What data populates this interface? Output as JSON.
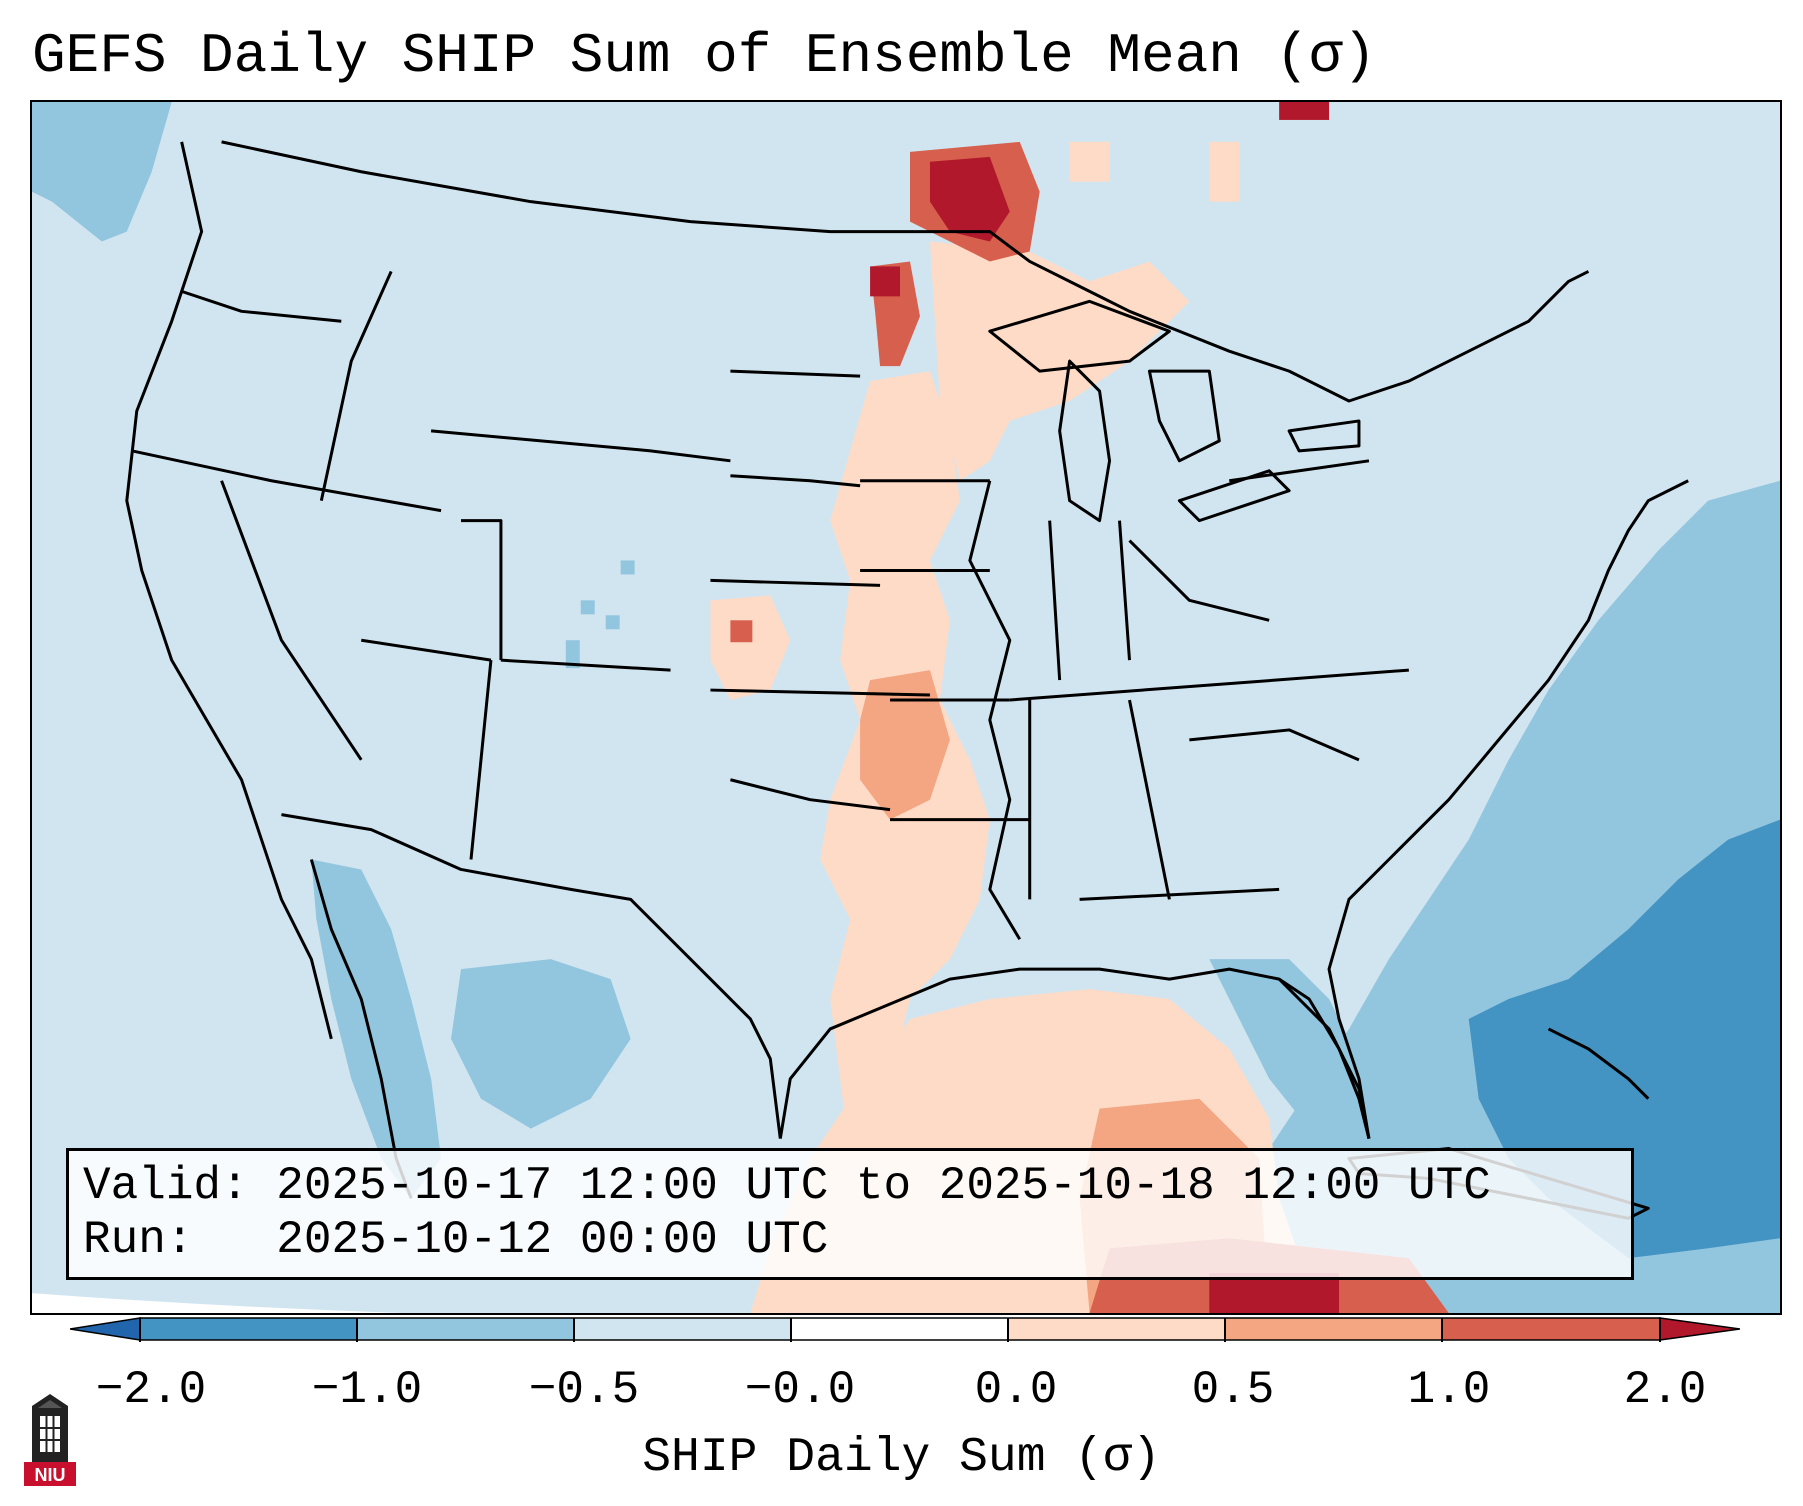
{
  "title": "GEFS Daily SHIP Sum of Ensemble Mean (σ)",
  "info": {
    "valid_line": "Valid: 2025-10-17 12:00 UTC to 2025-10-18 12:00 UTC",
    "run_line": "Run:   2025-10-12 00:00 UTC"
  },
  "colorbar": {
    "label": "SHIP Daily Sum (σ)",
    "ticks": [
      "−2.0",
      "−1.0",
      "−0.5",
      "−0.0",
      "0.0",
      "0.5",
      "1.0",
      "2.0"
    ],
    "colors": {
      "extend_low": "#2166ac",
      "b_neg2_neg1": "#4393c3",
      "b_neg1_neg05": "#92c5de",
      "b_neg05_0": "#d1e5f0",
      "b_0_05": "#fddbc7",
      "b_05_1": "#f4a582",
      "b_1_2": "#d6604d",
      "extend_high": "#b2182b"
    }
  },
  "logo": {
    "text": "NIU"
  }
}
